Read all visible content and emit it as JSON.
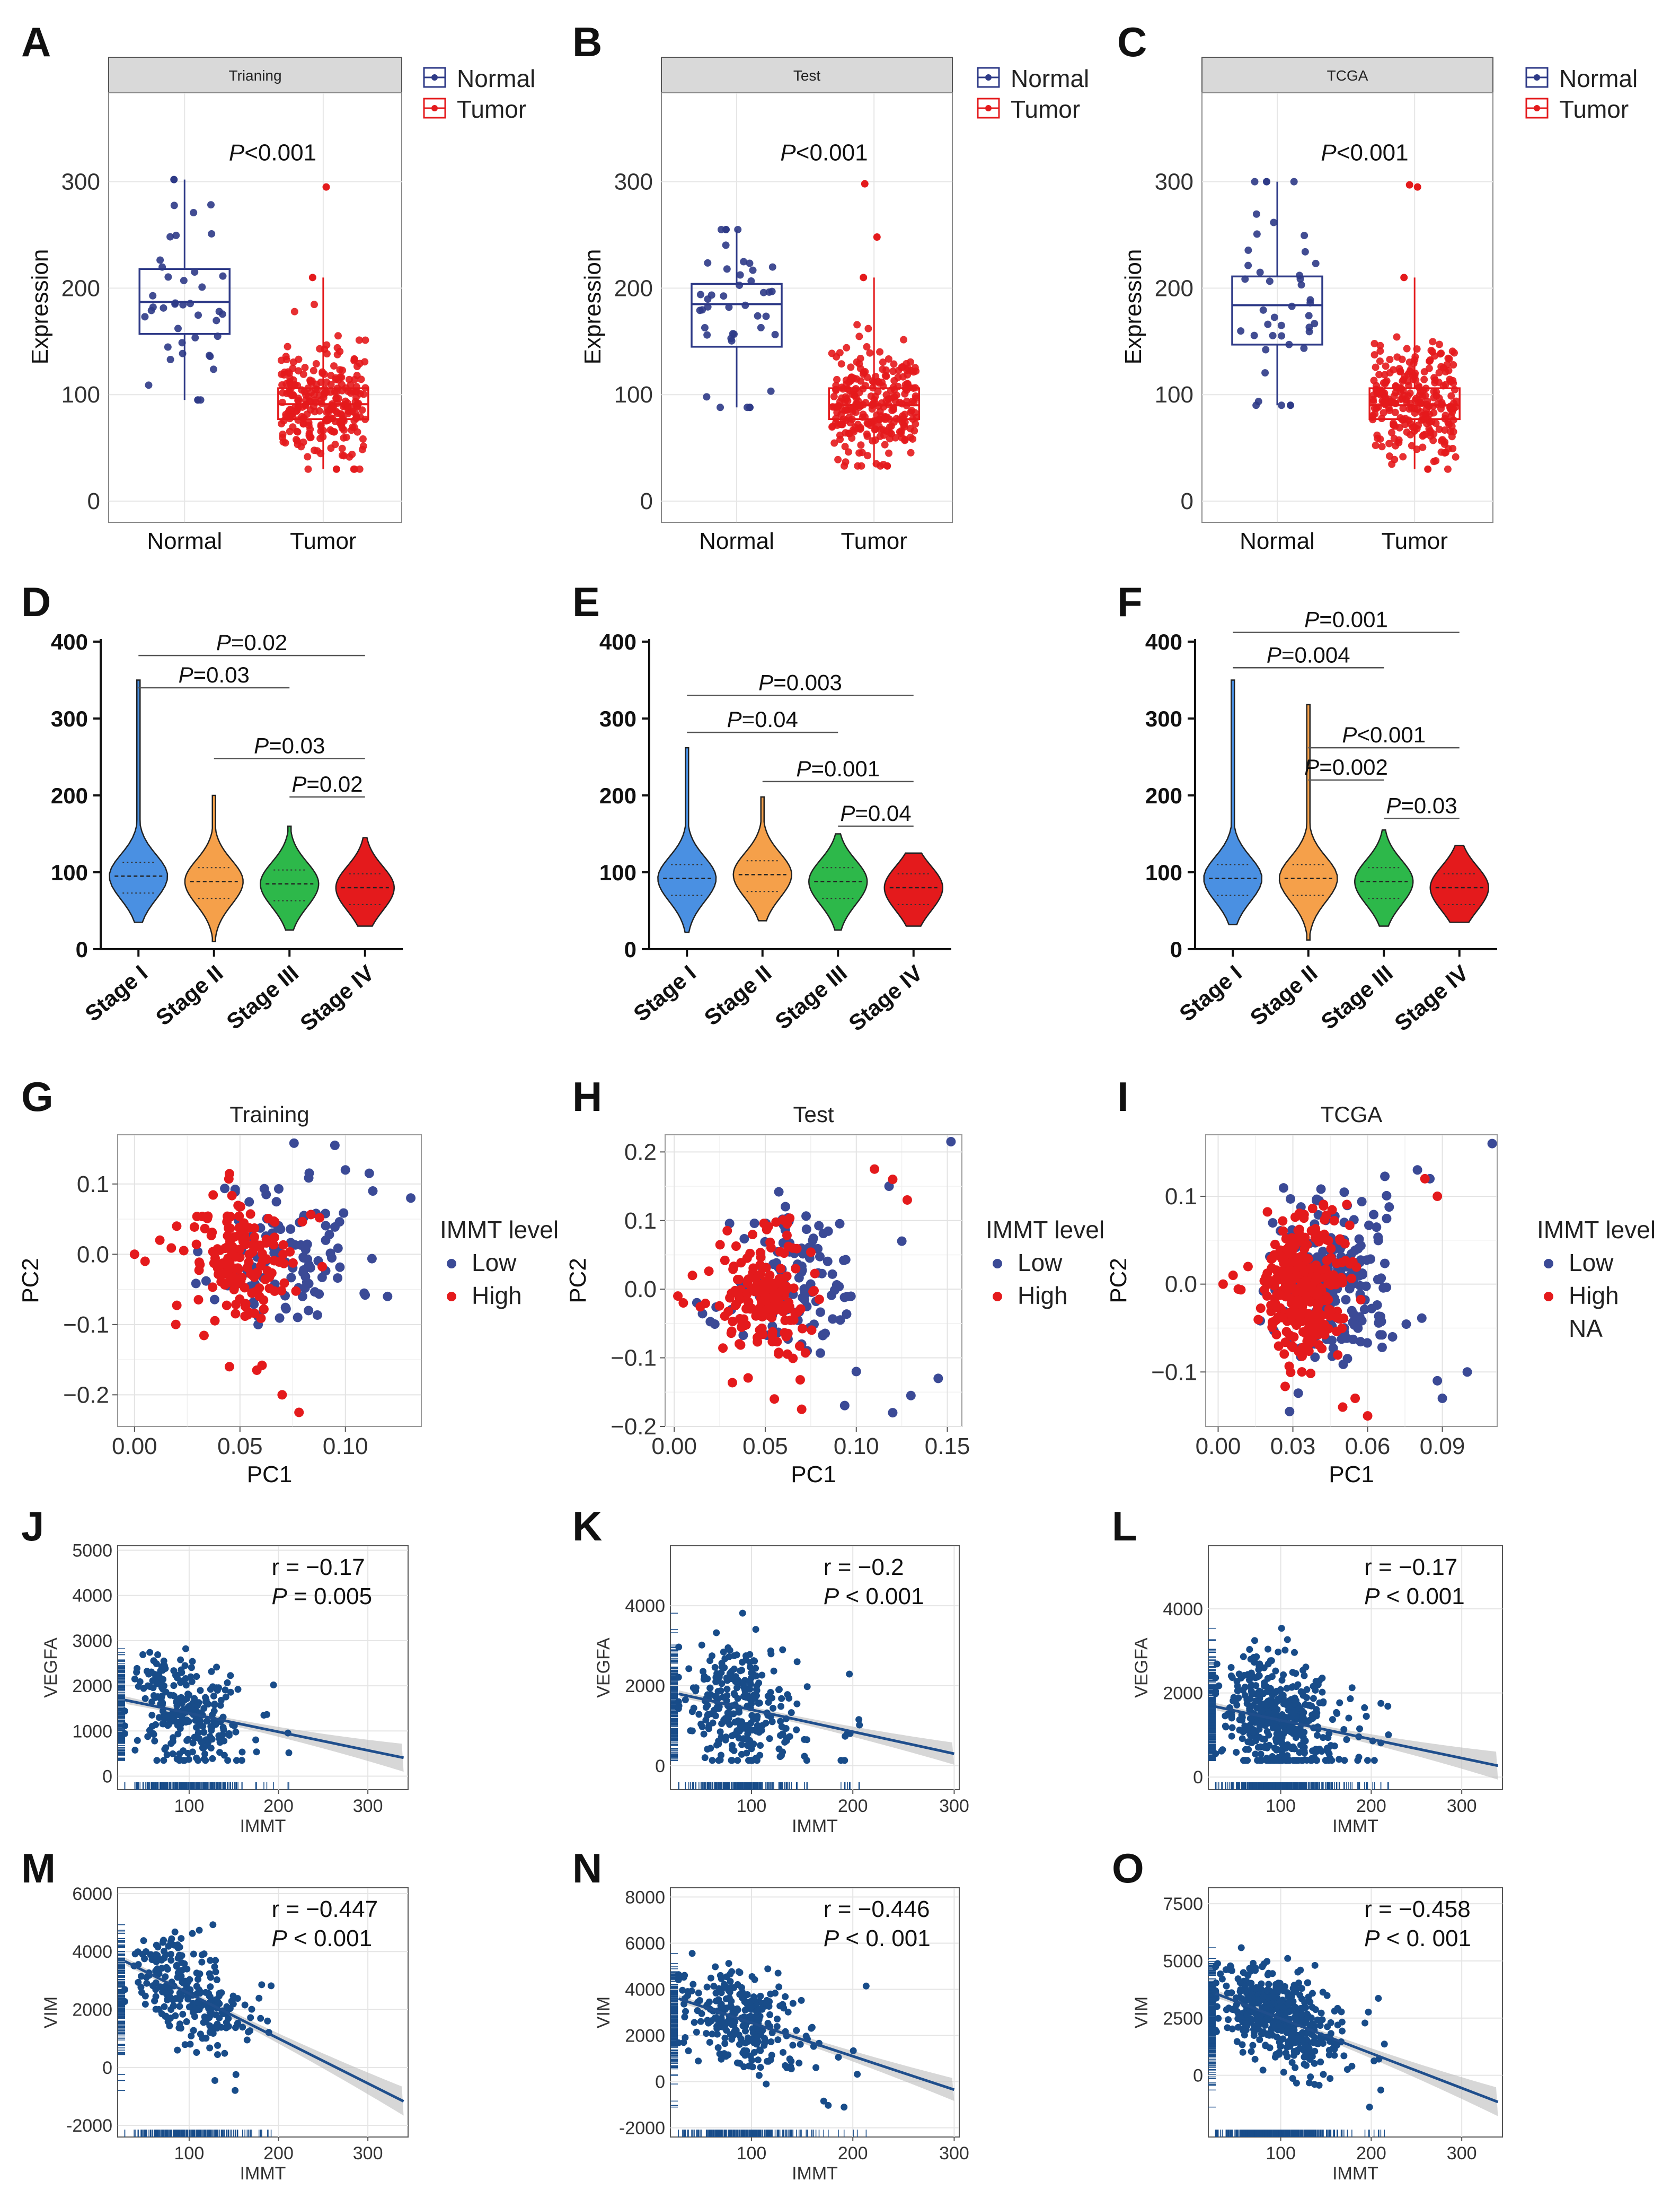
{
  "colors": {
    "normal": "#2E3A87",
    "tumor": "#E41A1C",
    "stage1": "#4A90E2",
    "stage2": "#F5A04A",
    "stage3": "#2DB84A",
    "stage4": "#E41A1C",
    "low": "#3B4A96",
    "high": "#E41A1C",
    "reg": "#1F4E8C",
    "point": "#184C89"
  },
  "chart_data": [
    {
      "panel": "A",
      "type": "box",
      "strip": "Trianing",
      "categories": [
        "Normal",
        "Tumor"
      ],
      "ylabel": "Expression",
      "yticks": [
        0,
        100,
        200,
        300
      ],
      "ylim": [
        0,
        380
      ],
      "legend": [
        "Normal",
        "Tumor"
      ],
      "pvalue_italic": "P",
      "pvalue_rest": "<0.001",
      "boxes": [
        {
          "q1": 157,
          "median": 187,
          "q3": 218,
          "lo": 95,
          "hi": 302
        },
        {
          "q1": 77,
          "median": 91,
          "q3": 106,
          "lo": 30,
          "hi": 210,
          "outliers": [
            295
          ]
        }
      ]
    },
    {
      "panel": "B",
      "type": "box",
      "strip": "Test",
      "categories": [
        "Normal",
        "Tumor"
      ],
      "ylabel": "Expression",
      "yticks": [
        0,
        100,
        200,
        300
      ],
      "ylim": [
        0,
        380
      ],
      "legend": [
        "Normal",
        "Tumor"
      ],
      "pvalue_italic": "P",
      "pvalue_rest": "<0.001",
      "boxes": [
        {
          "q1": 145,
          "median": 185,
          "q3": 204,
          "lo": 88,
          "hi": 255
        },
        {
          "q1": 77,
          "median": 90,
          "q3": 106,
          "lo": 33,
          "hi": 210,
          "outliers": [
            248,
            298
          ]
        }
      ]
    },
    {
      "panel": "C",
      "type": "box",
      "strip": "TCGA",
      "categories": [
        "Normal",
        "Tumor"
      ],
      "ylabel": "Expression",
      "yticks": [
        0,
        100,
        200,
        300
      ],
      "ylim": [
        0,
        380
      ],
      "legend": [
        "Normal",
        "Tumor"
      ],
      "pvalue_italic": "P",
      "pvalue_rest": "<0.001",
      "boxes": [
        {
          "q1": 147,
          "median": 184,
          "q3": 211,
          "lo": 90,
          "hi": 300
        },
        {
          "q1": 77,
          "median": 90,
          "q3": 106,
          "lo": 30,
          "hi": 210,
          "outliers": [
            295,
            297
          ]
        }
      ]
    },
    {
      "panel": "D",
      "type": "violin",
      "categories": [
        "Stage I",
        "Stage II",
        "Stage III",
        "Stage IV"
      ],
      "yticks": [
        0,
        100,
        200,
        300,
        400
      ],
      "ylim": [
        0,
        400
      ],
      "violins": [
        {
          "min": 35,
          "max": 350,
          "median": 95
        },
        {
          "min": 10,
          "max": 200,
          "median": 88
        },
        {
          "min": 25,
          "max": 160,
          "median": 85
        },
        {
          "min": 30,
          "max": 145,
          "median": 80
        }
      ],
      "comparisons": [
        {
          "from": 0,
          "to": 3,
          "y": 382,
          "italic": "P",
          "rest": "=0.02"
        },
        {
          "from": 0,
          "to": 2,
          "y": 340,
          "italic": "P",
          "rest": "=0.03"
        },
        {
          "from": 1,
          "to": 3,
          "y": 248,
          "italic": "P",
          "rest": "=0.03"
        },
        {
          "from": 2,
          "to": 3,
          "y": 198,
          "italic": "P",
          "rest": "=0.02"
        }
      ]
    },
    {
      "panel": "E",
      "type": "violin",
      "categories": [
        "Stage I",
        "Stage II",
        "Stage III",
        "Stage IV"
      ],
      "yticks": [
        0,
        100,
        200,
        300,
        400
      ],
      "ylim": [
        0,
        400
      ],
      "violins": [
        {
          "min": 22,
          "max": 262,
          "median": 92
        },
        {
          "min": 37,
          "max": 198,
          "median": 97
        },
        {
          "min": 25,
          "max": 150,
          "median": 88
        },
        {
          "min": 30,
          "max": 125,
          "median": 80
        }
      ],
      "comparisons": [
        {
          "from": 0,
          "to": 3,
          "y": 330,
          "italic": "P",
          "rest": "=0.003"
        },
        {
          "from": 0,
          "to": 2,
          "y": 282,
          "italic": "P",
          "rest": "=0.04"
        },
        {
          "from": 1,
          "to": 3,
          "y": 218,
          "italic": "P",
          "rest": "=0.001"
        },
        {
          "from": 2,
          "to": 3,
          "y": 160,
          "italic": "P",
          "rest": "=0.04"
        }
      ]
    },
    {
      "panel": "F",
      "type": "violin",
      "categories": [
        "Stage I",
        "Stage II",
        "Stage III",
        "Stage IV"
      ],
      "yticks": [
        0,
        100,
        200,
        300,
        400
      ],
      "ylim": [
        0,
        400
      ],
      "violins": [
        {
          "min": 32,
          "max": 350,
          "median": 92
        },
        {
          "min": 12,
          "max": 318,
          "median": 92
        },
        {
          "min": 30,
          "max": 155,
          "median": 88
        },
        {
          "min": 35,
          "max": 135,
          "median": 80
        }
      ],
      "comparisons": [
        {
          "from": 0,
          "to": 3,
          "y": 412,
          "italic": "P",
          "rest": "=0.001"
        },
        {
          "from": 0,
          "to": 2,
          "y": 366,
          "italic": "P",
          "rest": "=0.004"
        },
        {
          "from": 1,
          "to": 3,
          "y": 262,
          "italic": "P",
          "rest": "<0.001"
        },
        {
          "from": 1,
          "to": 2,
          "y": 220,
          "italic": "P",
          "rest": "=0.002"
        },
        {
          "from": 2,
          "to": 3,
          "y": 170,
          "italic": "P",
          "rest": "=0.03"
        }
      ]
    },
    {
      "panel": "G",
      "type": "scatter",
      "title": "Training",
      "xlabel": "PC1",
      "ylabel": "PC2",
      "xlim": [
        -0.008,
        0.136
      ],
      "ylim": [
        -0.245,
        0.17
      ],
      "xticks": [
        0.0,
        0.05,
        0.1
      ],
      "xticklabels": [
        "0.00",
        "0.05",
        "0.10"
      ],
      "yticks": [
        -0.2,
        -0.1,
        0.0,
        0.1
      ],
      "yticklabels": [
        "−0.2",
        "−0.1",
        "0.0",
        "0.1"
      ],
      "legend_title": "IMMT level",
      "legend": [
        "Low",
        "High"
      ],
      "clouds": [
        {
          "group": "Low",
          "n": 110,
          "cx": 0.072,
          "cy": 0.0,
          "sx": 0.017,
          "sy": 0.058,
          "seed": 11
        },
        {
          "group": "High",
          "n": 150,
          "cx": 0.052,
          "cy": -0.01,
          "sx": 0.013,
          "sy": 0.048,
          "seed": 12
        }
      ],
      "extra": [
        {
          "group": "Low",
          "pts": [
            [
              0.131,
              0.08
            ],
            [
              0.12,
              -0.06
            ],
            [
              0.113,
              0.09
            ],
            [
              0.1,
              0.12
            ],
            [
              0.095,
              0.155
            ]
          ]
        },
        {
          "group": "High",
          "pts": [
            [
              0.0,
              0.0
            ],
            [
              0.005,
              -0.01
            ],
            [
              0.012,
              0.02
            ],
            [
              0.02,
              0.04
            ],
            [
              0.07,
              -0.2
            ],
            [
              0.078,
              -0.225
            ],
            [
              0.058,
              -0.165
            ],
            [
              0.045,
              -0.16
            ]
          ]
        }
      ]
    },
    {
      "panel": "H",
      "type": "scatter",
      "title": "Test",
      "xlabel": "PC1",
      "ylabel": "PC2",
      "xlim": [
        -0.005,
        0.158
      ],
      "ylim": [
        -0.2,
        0.225
      ],
      "xticks": [
        0.0,
        0.05,
        0.1,
        0.15
      ],
      "xticklabels": [
        "0.00",
        "0.05",
        "0.10",
        "0.15"
      ],
      "yticks": [
        -0.2,
        -0.1,
        0.0,
        0.1,
        0.2
      ],
      "yticklabels": [
        "−0.2",
        "−0.1",
        "0.0",
        "0.1",
        "0.2"
      ],
      "legend_title": "IMMT level",
      "legend": [
        "Low",
        "High"
      ],
      "clouds": [
        {
          "group": "Low",
          "n": 120,
          "cx": 0.068,
          "cy": 0.0,
          "sx": 0.018,
          "sy": 0.055,
          "seed": 21
        },
        {
          "group": "High",
          "n": 170,
          "cx": 0.05,
          "cy": -0.01,
          "sx": 0.012,
          "sy": 0.045,
          "seed": 22
        }
      ],
      "extra": [
        {
          "group": "Low",
          "pts": [
            [
              0.152,
              0.215
            ],
            [
              0.145,
              -0.13
            ],
            [
              0.13,
              -0.155
            ],
            [
              0.12,
              -0.18
            ],
            [
              0.125,
              0.07
            ],
            [
              0.118,
              0.15
            ],
            [
              0.1,
              -0.12
            ]
          ]
        },
        {
          "group": "High",
          "pts": [
            [
              0.002,
              -0.01
            ],
            [
              0.005,
              -0.02
            ],
            [
              0.01,
              0.02
            ],
            [
              0.11,
              0.175
            ],
            [
              0.12,
              0.16
            ],
            [
              0.128,
              0.13
            ],
            [
              0.07,
              -0.175
            ],
            [
              0.055,
              -0.16
            ]
          ]
        }
      ]
    },
    {
      "panel": "I",
      "type": "scatter",
      "title": "TCGA",
      "xlabel": "PC1",
      "ylabel": "PC2",
      "xlim": [
        -0.005,
        0.112
      ],
      "ylim": [
        -0.162,
        0.17
      ],
      "xticks": [
        0.0,
        0.03,
        0.06,
        0.09
      ],
      "xticklabels": [
        "0.00",
        "0.03",
        "0.06",
        "0.09"
      ],
      "yticks": [
        -0.1,
        0.0,
        0.1
      ],
      "yticklabels": [
        "−0.1",
        "0.0",
        "0.1"
      ],
      "legend_title": "IMMT level",
      "legend": [
        "Low",
        "High",
        "NA"
      ],
      "clouds": [
        {
          "group": "Low",
          "n": 210,
          "cx": 0.046,
          "cy": 0.0,
          "sx": 0.013,
          "sy": 0.05,
          "seed": 31
        },
        {
          "group": "High",
          "n": 320,
          "cx": 0.033,
          "cy": -0.005,
          "sx": 0.009,
          "sy": 0.04,
          "seed": 32
        }
      ],
      "extra": [
        {
          "group": "Low",
          "pts": [
            [
              0.11,
              0.16
            ],
            [
              0.1,
              -0.1
            ],
            [
              0.09,
              -0.13
            ],
            [
              0.088,
              -0.11
            ],
            [
              0.08,
              0.13
            ],
            [
              0.085,
              0.12
            ],
            [
              0.07,
              -0.06
            ]
          ]
        },
        {
          "group": "High",
          "pts": [
            [
              0.002,
              0.0
            ],
            [
              0.006,
              0.01
            ],
            [
              0.012,
              0.02
            ],
            [
              0.088,
              0.1
            ],
            [
              0.083,
              0.12
            ],
            [
              0.06,
              -0.15
            ],
            [
              0.055,
              -0.13
            ],
            [
              0.05,
              -0.14
            ]
          ]
        }
      ]
    },
    {
      "panel": "J",
      "type": "scatter_regression",
      "xlabel": "IMMT",
      "ylabel": "VEGFA",
      "xlim": [
        20,
        345
      ],
      "ylim": [
        -300,
        5100
      ],
      "xticks": [
        100,
        200,
        300
      ],
      "yticks": [
        0,
        1000,
        2000,
        3000,
        4000,
        5000
      ],
      "r_text": "r = −0.17",
      "p_italic": "P",
      "p_rest": " = 0.005",
      "fit": {
        "intercept": 1800,
        "slope": -4.1
      },
      "n": 260,
      "xmean": 95,
      "xsd": 30,
      "resid_sd": 650,
      "seed": 41
    },
    {
      "panel": "K",
      "type": "scatter_regression",
      "xlabel": "IMMT",
      "ylabel": "VEGFA",
      "xlim": [
        20,
        305
      ],
      "ylim": [
        -600,
        5500
      ],
      "xticks": [
        100,
        200,
        300
      ],
      "yticks": [
        0,
        2000,
        4000
      ],
      "r_text": "r = −0.2",
      "p_italic": "P",
      "p_rest": " < 0.001",
      "fit": {
        "intercept": 1950,
        "slope": -5.5
      },
      "n": 280,
      "xmean": 90,
      "xsd": 28,
      "resid_sd": 800,
      "seed": 42
    },
    {
      "panel": "L",
      "type": "scatter_regression",
      "xlabel": "IMMT",
      "ylabel": "VEGFA",
      "xlim": [
        20,
        345
      ],
      "ylim": [
        -300,
        5500
      ],
      "xticks": [
        100,
        200,
        300
      ],
      "yticks": [
        0,
        2000,
        4000
      ],
      "r_text": "r = −0.17",
      "p_italic": "P",
      "p_rest": " < 0.001",
      "fit": {
        "intercept": 1800,
        "slope": -4.5
      },
      "n": 480,
      "xmean": 95,
      "xsd": 30,
      "resid_sd": 750,
      "seed": 43
    },
    {
      "panel": "M",
      "type": "scatter_regression",
      "xlabel": "IMMT",
      "ylabel": "VIM",
      "xlim": [
        20,
        345
      ],
      "ylim": [
        -2400,
        6200
      ],
      "xticks": [
        100,
        200,
        300
      ],
      "yticks": [
        -2000,
        0,
        2000,
        4000,
        6000
      ],
      "r_text": "r = −0.447",
      "p_italic": "P",
      "p_rest": " < 0.001",
      "fit": {
        "intercept": 4100,
        "slope": -15.5
      },
      "n": 260,
      "xmean": 95,
      "xsd": 30,
      "resid_sd": 800,
      "seed": 51
    },
    {
      "panel": "N",
      "type": "scatter_regression",
      "xlabel": "IMMT",
      "ylabel": "VIM",
      "xlim": [
        20,
        305
      ],
      "ylim": [
        -2400,
        8400
      ],
      "xticks": [
        100,
        200,
        300
      ],
      "yticks": [
        -2000,
        0,
        2000,
        4000,
        6000,
        8000
      ],
      "r_text": "r = −0.446",
      "p_italic": "P",
      "p_rest": " < 0. 001",
      "fit": {
        "intercept": 4000,
        "slope": -14.5
      },
      "n": 280,
      "xmean": 90,
      "xsd": 28,
      "resid_sd": 1000,
      "seed": 52
    },
    {
      "panel": "O",
      "type": "scatter_regression",
      "xlabel": "IMMT",
      "ylabel": "VIM",
      "xlim": [
        20,
        345
      ],
      "ylim": [
        -2700,
        8200
      ],
      "xticks": [
        100,
        200,
        300
      ],
      "yticks": [
        0,
        2500,
        5000,
        7500
      ],
      "r_text": "r = −0.458",
      "p_italic": "P",
      "p_rest": " < 0. 001",
      "fit": {
        "intercept": 4000,
        "slope": -15.2
      },
      "n": 480,
      "xmean": 95,
      "xsd": 30,
      "resid_sd": 1000,
      "seed": 53
    }
  ]
}
